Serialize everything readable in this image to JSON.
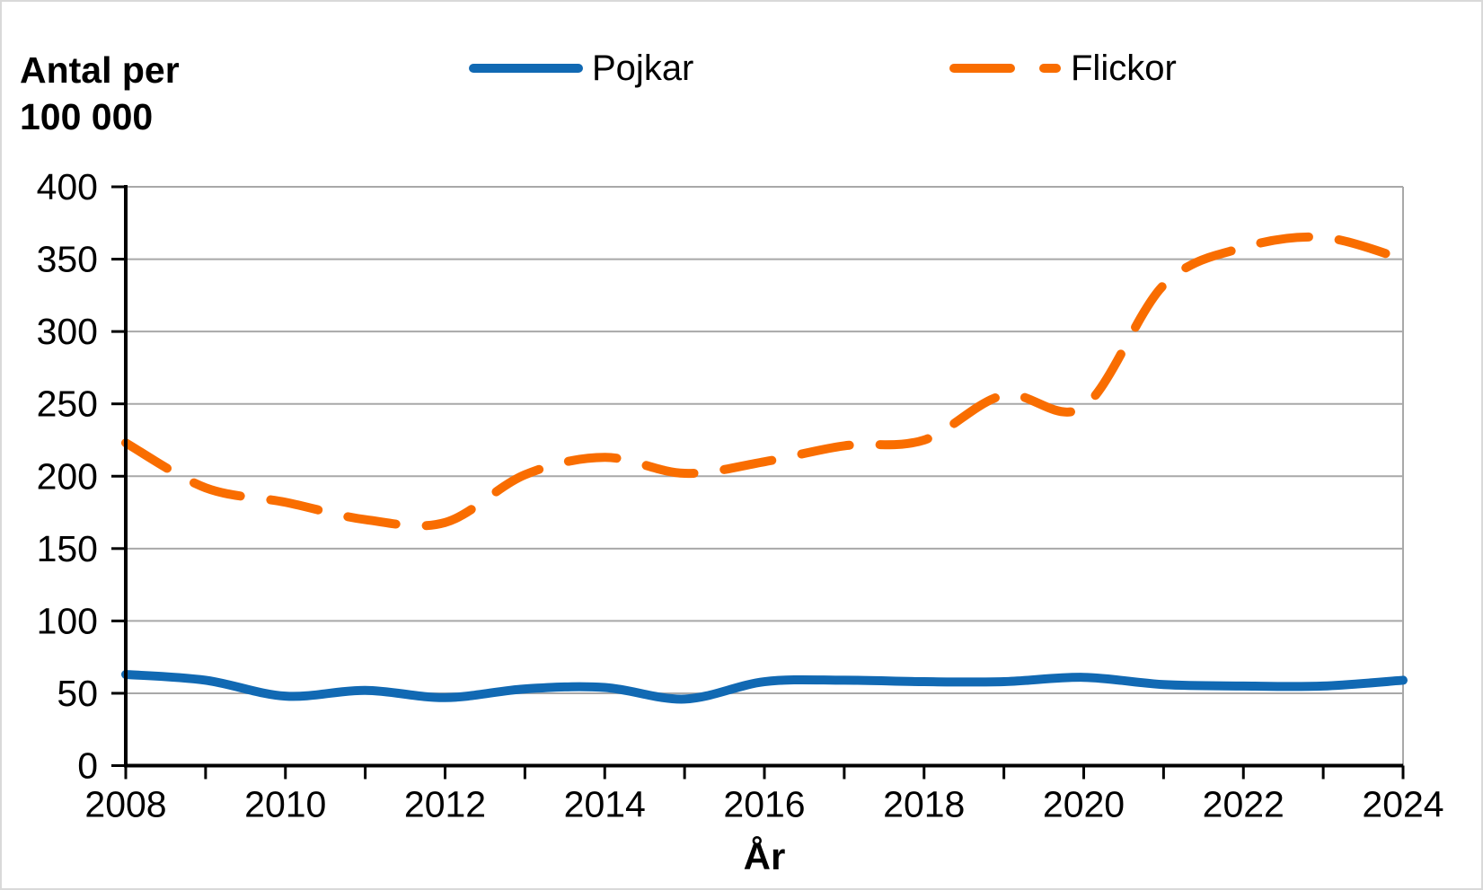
{
  "y_axis_title": {
    "line1": "Antal per",
    "line2": "100 000"
  },
  "x_axis_title": "År",
  "legend": {
    "position": "top",
    "items": [
      {
        "label": "Pojkar",
        "color": "#1169b3",
        "style": "solid"
      },
      {
        "label": "Flickor",
        "color": "#f96d00",
        "style": "dashed"
      }
    ]
  },
  "chart_data": {
    "type": "line",
    "title": "",
    "ylabel": "Antal per 100 000",
    "xlabel": "År",
    "x": [
      2008,
      2009,
      2010,
      2011,
      2012,
      2013,
      2014,
      2015,
      2016,
      2017,
      2018,
      2019,
      2020,
      2021,
      2022,
      2023,
      2024
    ],
    "series": [
      {
        "name": "Pojkar",
        "color": "#1169b3",
        "style": "solid",
        "values": [
          63,
          59,
          48,
          52,
          47,
          53,
          54,
          46,
          58,
          59,
          58,
          58,
          61,
          56,
          55,
          55,
          59
        ]
      },
      {
        "name": "Flickor",
        "color": "#f96d00",
        "style": "dashed",
        "values": [
          223,
          192,
          182,
          170,
          168,
          201,
          213,
          202,
          210,
          221,
          225,
          256,
          248,
          332,
          358,
          365,
          350
        ]
      }
    ],
    "ylim": [
      0,
      400
    ],
    "ytick_step": 50,
    "xtick_label_step": 2,
    "grid": true,
    "grid_color": "#a8a8a8",
    "axis_color": "#000000"
  }
}
